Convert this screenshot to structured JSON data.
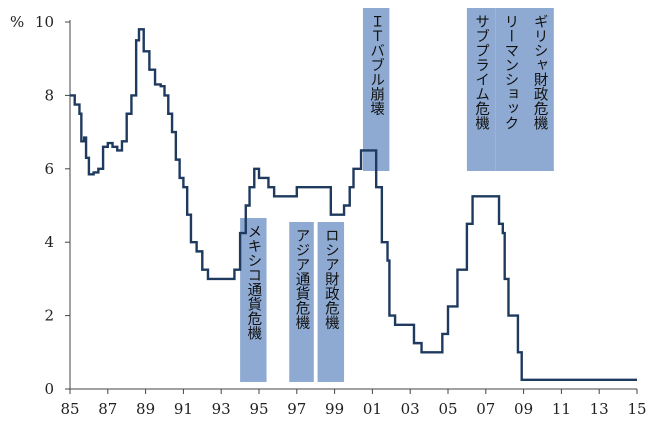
{
  "chart_data": {
    "type": "line",
    "ylabel": "%",
    "xlabel": "",
    "title": "",
    "xlim": [
      1985,
      2015
    ],
    "ylim": [
      0,
      10
    ],
    "x_ticks": [
      "85",
      "87",
      "89",
      "91",
      "93",
      "95",
      "97",
      "99",
      "01",
      "03",
      "05",
      "07",
      "09",
      "11",
      "13",
      "15"
    ],
    "y_ticks": [
      "0",
      "2",
      "4",
      "6",
      "8",
      "10"
    ],
    "grid": false,
    "line_color": "#1f3a5f",
    "band_color": "#8eaad2",
    "annotations": [
      {
        "text": "メキシコ通貨危機",
        "x_start": 1994.0,
        "x_end": 1995.4
      },
      {
        "text": "アジア通貨危機",
        "x_start": 1996.6,
        "x_end": 1997.9
      },
      {
        "text": "ロシア財政危機",
        "x_start": 1998.1,
        "x_end": 1999.5
      },
      {
        "text": "ＩＴバブル崩壊",
        "x_start": 2000.5,
        "x_end": 2001.9
      },
      {
        "text": "サブプライム危機",
        "x_start": 2006.0,
        "x_end": 2007.5
      },
      {
        "text": "リーマンショック",
        "x_start": 2007.5,
        "x_end": 2009.1
      },
      {
        "text": "ギリシャ財政危機",
        "x_start": 2009.1,
        "x_end": 2010.6
      }
    ],
    "series": [
      {
        "values": [
          [
            1985.0,
            8.0
          ],
          [
            1985.25,
            7.75
          ],
          [
            1985.5,
            7.5
          ],
          [
            1985.6,
            6.75
          ],
          [
            1985.75,
            6.85
          ],
          [
            1985.85,
            6.3
          ],
          [
            1986.0,
            5.85
          ],
          [
            1986.25,
            5.9
          ],
          [
            1986.5,
            6.0
          ],
          [
            1986.75,
            6.6
          ],
          [
            1987.0,
            6.7
          ],
          [
            1987.25,
            6.6
          ],
          [
            1987.5,
            6.5
          ],
          [
            1987.75,
            6.75
          ],
          [
            1988.0,
            7.5
          ],
          [
            1988.25,
            8.0
          ],
          [
            1988.5,
            9.5
          ],
          [
            1988.65,
            9.8
          ],
          [
            1988.9,
            9.2
          ],
          [
            1989.2,
            8.7
          ],
          [
            1989.5,
            8.3
          ],
          [
            1989.8,
            8.25
          ],
          [
            1990.0,
            8.0
          ],
          [
            1990.2,
            7.5
          ],
          [
            1990.4,
            7.0
          ],
          [
            1990.6,
            6.25
          ],
          [
            1990.8,
            5.75
          ],
          [
            1991.0,
            5.5
          ],
          [
            1991.2,
            4.75
          ],
          [
            1991.4,
            4.0
          ],
          [
            1991.7,
            3.75
          ],
          [
            1992.0,
            3.25
          ],
          [
            1992.3,
            3.0
          ],
          [
            1992.8,
            3.0
          ],
          [
            1993.3,
            3.0
          ],
          [
            1993.7,
            3.25
          ],
          [
            1994.0,
            4.25
          ],
          [
            1994.3,
            5.0
          ],
          [
            1994.5,
            5.5
          ],
          [
            1994.75,
            6.0
          ],
          [
            1995.0,
            5.75
          ],
          [
            1995.5,
            5.5
          ],
          [
            1995.8,
            5.25
          ],
          [
            1996.5,
            5.25
          ],
          [
            1997.0,
            5.5
          ],
          [
            1997.5,
            5.5
          ],
          [
            1998.5,
            5.5
          ],
          [
            1998.8,
            4.75
          ],
          [
            1999.2,
            4.75
          ],
          [
            1999.5,
            5.0
          ],
          [
            1999.8,
            5.5
          ],
          [
            2000.0,
            6.0
          ],
          [
            2000.4,
            6.5
          ],
          [
            2000.9,
            6.5
          ],
          [
            2001.2,
            5.5
          ],
          [
            2001.5,
            4.0
          ],
          [
            2001.8,
            3.5
          ],
          [
            2001.9,
            2.0
          ],
          [
            2002.2,
            1.75
          ],
          [
            2002.7,
            1.75
          ],
          [
            2003.2,
            1.25
          ],
          [
            2003.6,
            1.0
          ],
          [
            2004.3,
            1.0
          ],
          [
            2004.7,
            1.5
          ],
          [
            2005.0,
            2.25
          ],
          [
            2005.5,
            3.25
          ],
          [
            2006.0,
            4.5
          ],
          [
            2006.3,
            5.25
          ],
          [
            2006.7,
            5.25
          ],
          [
            2007.4,
            5.25
          ],
          [
            2007.7,
            4.5
          ],
          [
            2007.9,
            4.25
          ],
          [
            2008.0,
            3.0
          ],
          [
            2008.2,
            2.0
          ],
          [
            2008.5,
            2.0
          ],
          [
            2008.7,
            1.0
          ],
          [
            2008.9,
            0.25
          ],
          [
            2009.5,
            0.25
          ],
          [
            2011.0,
            0.25
          ],
          [
            2013.0,
            0.25
          ],
          [
            2015.0,
            0.25
          ]
        ]
      }
    ]
  }
}
